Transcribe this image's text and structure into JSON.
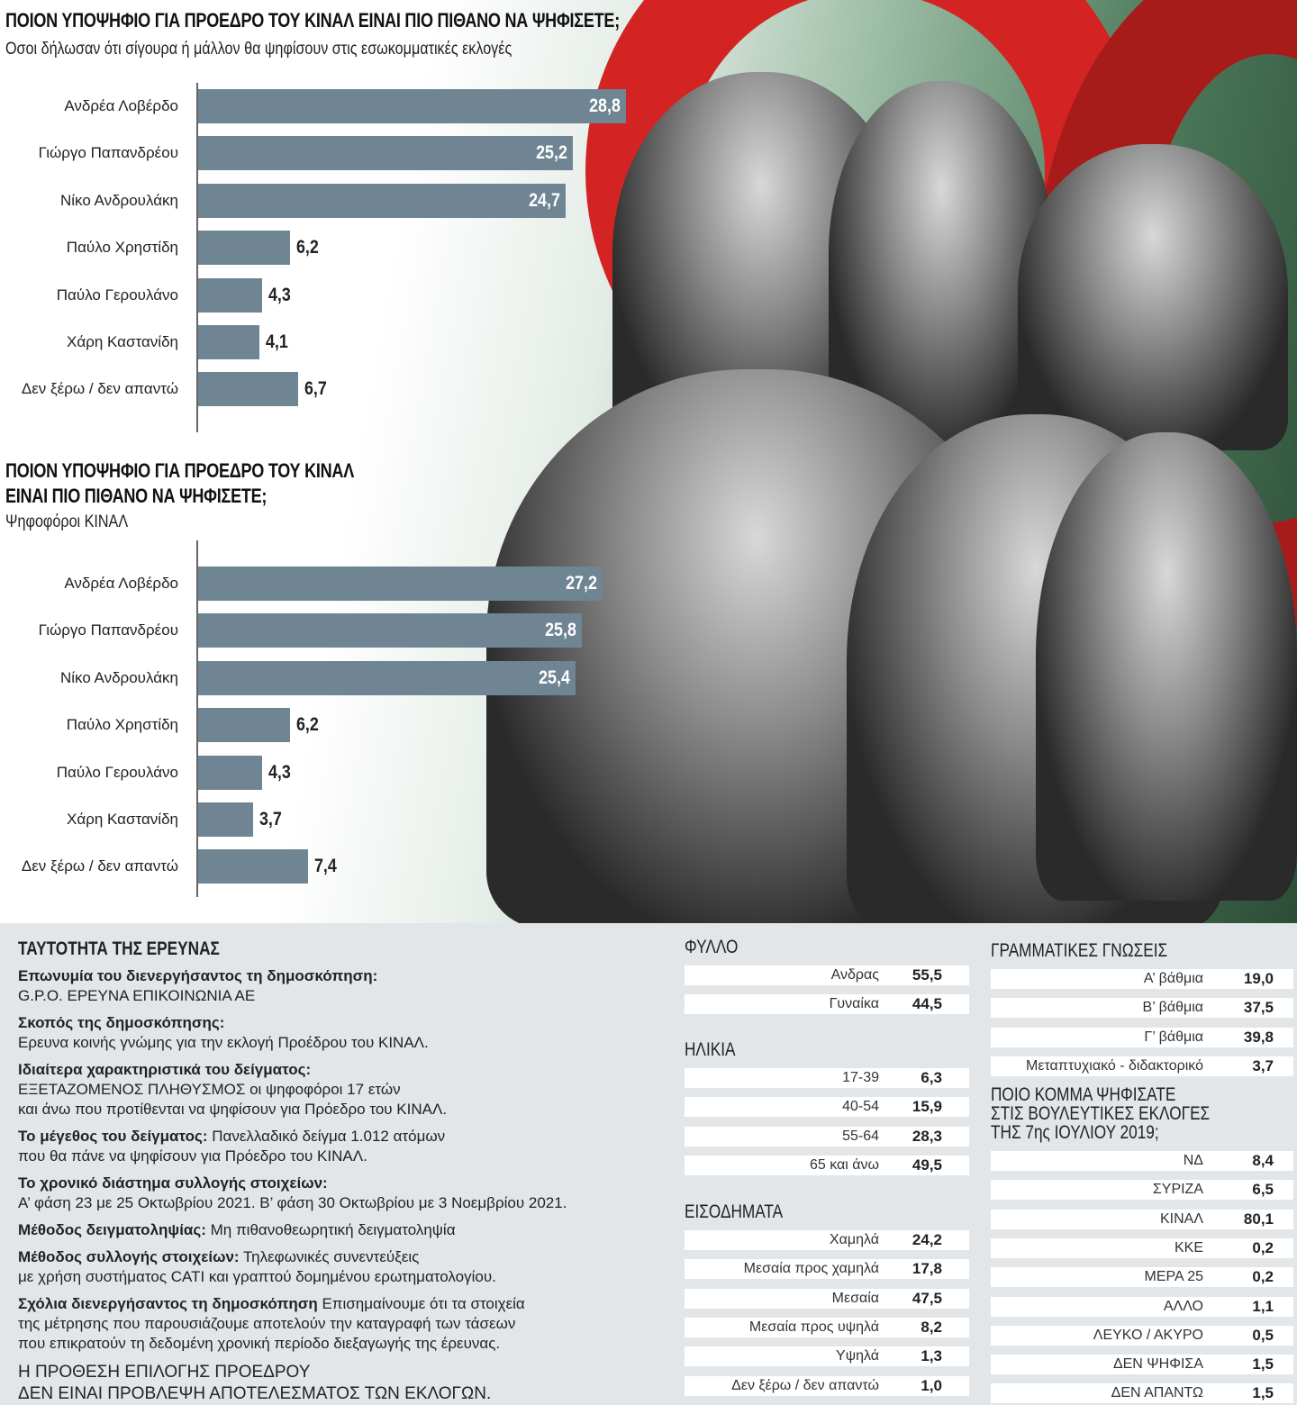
{
  "chart_data": [
    {
      "type": "bar",
      "orientation": "horizontal",
      "title": "ΠΟΙΟΝ ΥΠΟΨΗΦΙΟ ΓΙΑ ΠΡΟΕΔΡΟ ΤΟΥ ΚΙΝΑΛ ΕΙΝΑΙ ΠΙΟ ΠΙΘΑΝΟ ΝΑ ΨΗΦΙΣΕΤΕ;",
      "subtitle": "Οσοι δήλωσαν ότι σίγουρα ή μάλλον θα ψηφίσουν στις εσωκομματικές εκλογές",
      "categories": [
        "Ανδρέα Λοβέρδο",
        "Γιώργο Παπανδρέου",
        "Νίκο Ανδρουλάκη",
        "Παύλο Χρηστίδη",
        "Παύλο Γερουλάνο",
        "Χάρη Καστανίδη",
        "Δεν ξέρω / δεν απαντώ"
      ],
      "values": [
        28.8,
        25.2,
        24.7,
        6.2,
        4.3,
        4.1,
        6.7
      ],
      "labels": [
        "28,8",
        "25,2",
        "24,7",
        "6,2",
        "4,3",
        "4,1",
        "6,7"
      ]
    },
    {
      "type": "bar",
      "orientation": "horizontal",
      "title_lines": [
        "ΠΟΙΟΝ ΥΠΟΨΗΦΙΟ ΓΙΑ ΠΡΟΕΔΡΟ ΤΟΥ ΚΙΝΑΛ",
        "ΕΙΝΑΙ ΠΙΟ ΠΙΘΑΝΟ ΝΑ ΨΗΦΙΣΕΤΕ;"
      ],
      "subtitle": "Ψηφοφόροι ΚΙΝΑΛ",
      "categories": [
        "Ανδρέα Λοβέρδο",
        "Γιώργο Παπανδρέου",
        "Νίκο Ανδρουλάκη",
        "Παύλο Χρηστίδη",
        "Παύλο Γερουλάνο",
        "Χάρη Καστανίδη",
        "Δεν ξέρω / δεν απαντώ"
      ],
      "values": [
        27.2,
        25.8,
        25.4,
        6.2,
        4.3,
        3.7,
        7.4
      ],
      "labels": [
        "27,2",
        "25,8",
        "25,4",
        "6,2",
        "4,3",
        "3,7",
        "7,4"
      ]
    }
  ],
  "colors": {
    "bar": "#6f8593",
    "panel": "#e3e6e9"
  },
  "survey": {
    "title": "ΤΑΥΤΟΤΗΤΑ ΤΗΣ ΕΡΕΥΝΑΣ",
    "items": [
      {
        "k": "Επωνυμία του διενεργήσαντος τη δημοσκόπηση:",
        "lines": [
          "G.P.O. ΕΡΕΥΝΑ ΕΠΙΚΟΙΝΩΝΙΑ ΑΕ"
        ]
      },
      {
        "k": "Σκοπός της δημοσκόπησης:",
        "lines": [
          "Ερευνα κοινής γνώμης για την εκλογή Προέδρου του ΚΙΝΑΛ."
        ]
      },
      {
        "k": "Ιδιαίτερα χαρακτηριστικά του δείγματος:",
        "lines": [
          "ΕΞΕΤΑΖΟΜΕΝΟΣ ΠΛΗΘΥΣΜΟΣ οι ψηφοφόροι 17 ετών",
          "και άνω που προτίθενται να ψηφίσουν για Πρόεδρο του ΚΙΝΑΛ."
        ]
      },
      {
        "k": "Το μέγεθος του δείγματος:",
        "inline": " Πανελλαδικό δείγμα 1.012 ατόμων",
        "lines": [
          "που θα πάνε να ψηφίσουν για Πρόεδρο του ΚΙΝΑΛ."
        ]
      },
      {
        "k": "Το χρονικό διάστημα συλλογής στοιχείων:",
        "lines": [
          "Α’ φάση 23 με 25 Οκτωβρίου 2021. Β’ φάση 30 Οκτωβρίου με 3 Νοεμβρίου 2021."
        ]
      },
      {
        "k": "Μέθοδος δειγματοληψίας:",
        "inline": " Μη πιθανοθεωρητική δειγματοληψία",
        "lines": []
      },
      {
        "k": "Μέθοδος συλλογής στοιχείων:",
        "inline": " Τηλεφωνικές συνεντεύξεις",
        "lines": [
          "με χρήση συστήματος CATI και γραπτού δομημένου ερωτηματολογίου."
        ]
      },
      {
        "k": "Σχόλια διενεργήσαντος τη δημοσκόπηση",
        "inline": " Επισημαίνουμε ότι τα στοιχεία",
        "lines": [
          "της μέτρησης που παρουσιάζουμε αποτελούν την καταγραφή των τάσεων",
          "που επικρατούν τη δεδομένη χρονική περίοδο διεξαγωγής της έρευνας."
        ]
      }
    ],
    "disclaimer": [
      "Η ΠΡΟΘΕΣΗ ΕΠΙΛΟΓΗΣ ΠΡΟΕΔΡΟΥ",
      "ΔΕΝ ΕΙΝΑΙ ΠΡΟΒΛΕΨΗ ΑΠΟΤΕΛΕΣΜΑΤΟΣ ΤΩΝ ΕΚΛΟΓΩΝ."
    ]
  },
  "tables": [
    {
      "title": "ΦΥΛΛΟ",
      "rows": [
        [
          "Ανδρας",
          "55,5"
        ],
        [
          "Γυναίκα",
          "44,5"
        ]
      ]
    },
    {
      "title": "ΗΛΙΚΙΑ",
      "rows": [
        [
          "17-39",
          "6,3"
        ],
        [
          "40-54",
          "15,9"
        ],
        [
          "55-64",
          "28,3"
        ],
        [
          "65 και άνω",
          "49,5"
        ]
      ]
    },
    {
      "title": "ΕΙΣΟΔΗΜΑΤΑ",
      "rows": [
        [
          "Χαμηλά",
          "24,2"
        ],
        [
          "Μεσαία προς χαμηλά",
          "17,8"
        ],
        [
          "Μεσαία",
          "47,5"
        ],
        [
          "Μεσαία προς υψηλά",
          "8,2"
        ],
        [
          "Υψηλά",
          "1,3"
        ],
        [
          "Δεν ξέρω / δεν απαντώ",
          "1,0"
        ]
      ]
    },
    {
      "title": "ΓΡΑΜΜΑΤΙΚΕΣ ΓΝΩΣΕΙΣ",
      "rows": [
        [
          "Α’ βάθμια",
          "19,0"
        ],
        [
          "Β’ βάθμια",
          "37,5"
        ],
        [
          "Γ’ βάθμια",
          "39,8"
        ],
        [
          "Μεταπτυχιακό - διδακτορικό",
          "3,7"
        ]
      ]
    },
    {
      "title": "ΠΟΙΟ ΚΟΜΜΑ ΨΗΦΙΣΑΤΕ\nΣΤΙΣ ΒΟΥΛΕΥΤΙΚΕΣ ΕΚΛΟΓΕΣ\nΤΗΣ 7ης ΙΟΥΛΙΟΥ 2019;",
      "rows": [
        [
          "ΝΔ",
          "8,4"
        ],
        [
          "ΣΥΡΙΖΑ",
          "6,5"
        ],
        [
          "ΚΙΝΑΛ",
          "80,1"
        ],
        [
          "ΚΚΕ",
          "0,2"
        ],
        [
          "ΜΕΡΑ 25",
          "0,2"
        ],
        [
          "ΑΛΛΟ",
          "1,1"
        ],
        [
          "ΛΕΥΚΟ / ΑΚΥΡΟ",
          "0,5"
        ],
        [
          "ΔΕΝ ΨΗΦΙΣΑ",
          "1,5"
        ],
        [
          "ΔΕΝ ΑΠΑΝΤΩ",
          "1,5"
        ]
      ]
    }
  ]
}
